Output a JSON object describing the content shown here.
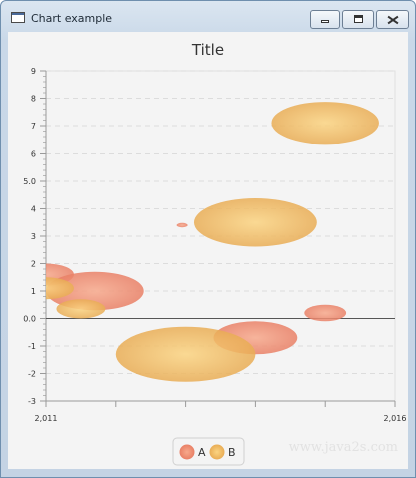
{
  "window": {
    "title": "Chart example",
    "buttons": [
      "minimize",
      "maximize",
      "close"
    ],
    "icon": "window-icon"
  },
  "chart_data": {
    "type": "bubble",
    "title": "Title",
    "xlabel": "",
    "ylabel": "",
    "xlim": [
      2011,
      2016
    ],
    "ylim": [
      -3,
      9
    ],
    "x_tick_labels": [
      "2,011",
      "2,016"
    ],
    "y_tick_labels": [
      "9",
      "8",
      "7",
      "6",
      "5.0",
      "4",
      "3",
      "2",
      "1",
      "0.0",
      "-1",
      "-2",
      "-3"
    ],
    "grid": true,
    "legend_position": "bottom",
    "series": [
      {
        "name": "A",
        "color": "#f08c72",
        "points": [
          {
            "x": 2011.0,
            "y": 1.6,
            "r": 0.4
          },
          {
            "x": 2011.7,
            "y": 1.0,
            "r": 0.7
          },
          {
            "x": 2012.95,
            "y": 3.4,
            "r": 0.08
          },
          {
            "x": 2014.0,
            "y": -0.7,
            "r": 0.6
          },
          {
            "x": 2015.0,
            "y": 0.2,
            "r": 0.3
          }
        ]
      },
      {
        "name": "B",
        "color": "#f5c060",
        "points": [
          {
            "x": 2011.0,
            "y": 1.1,
            "r": 0.4
          },
          {
            "x": 2011.5,
            "y": 0.35,
            "r": 0.35
          },
          {
            "x": 2013.0,
            "y": -1.3,
            "r": 1.0
          },
          {
            "x": 2014.0,
            "y": 3.5,
            "r": 0.88
          },
          {
            "x": 2015.0,
            "y": 7.1,
            "r": 0.77
          }
        ]
      }
    ]
  },
  "watermark": "www.java2s.com"
}
